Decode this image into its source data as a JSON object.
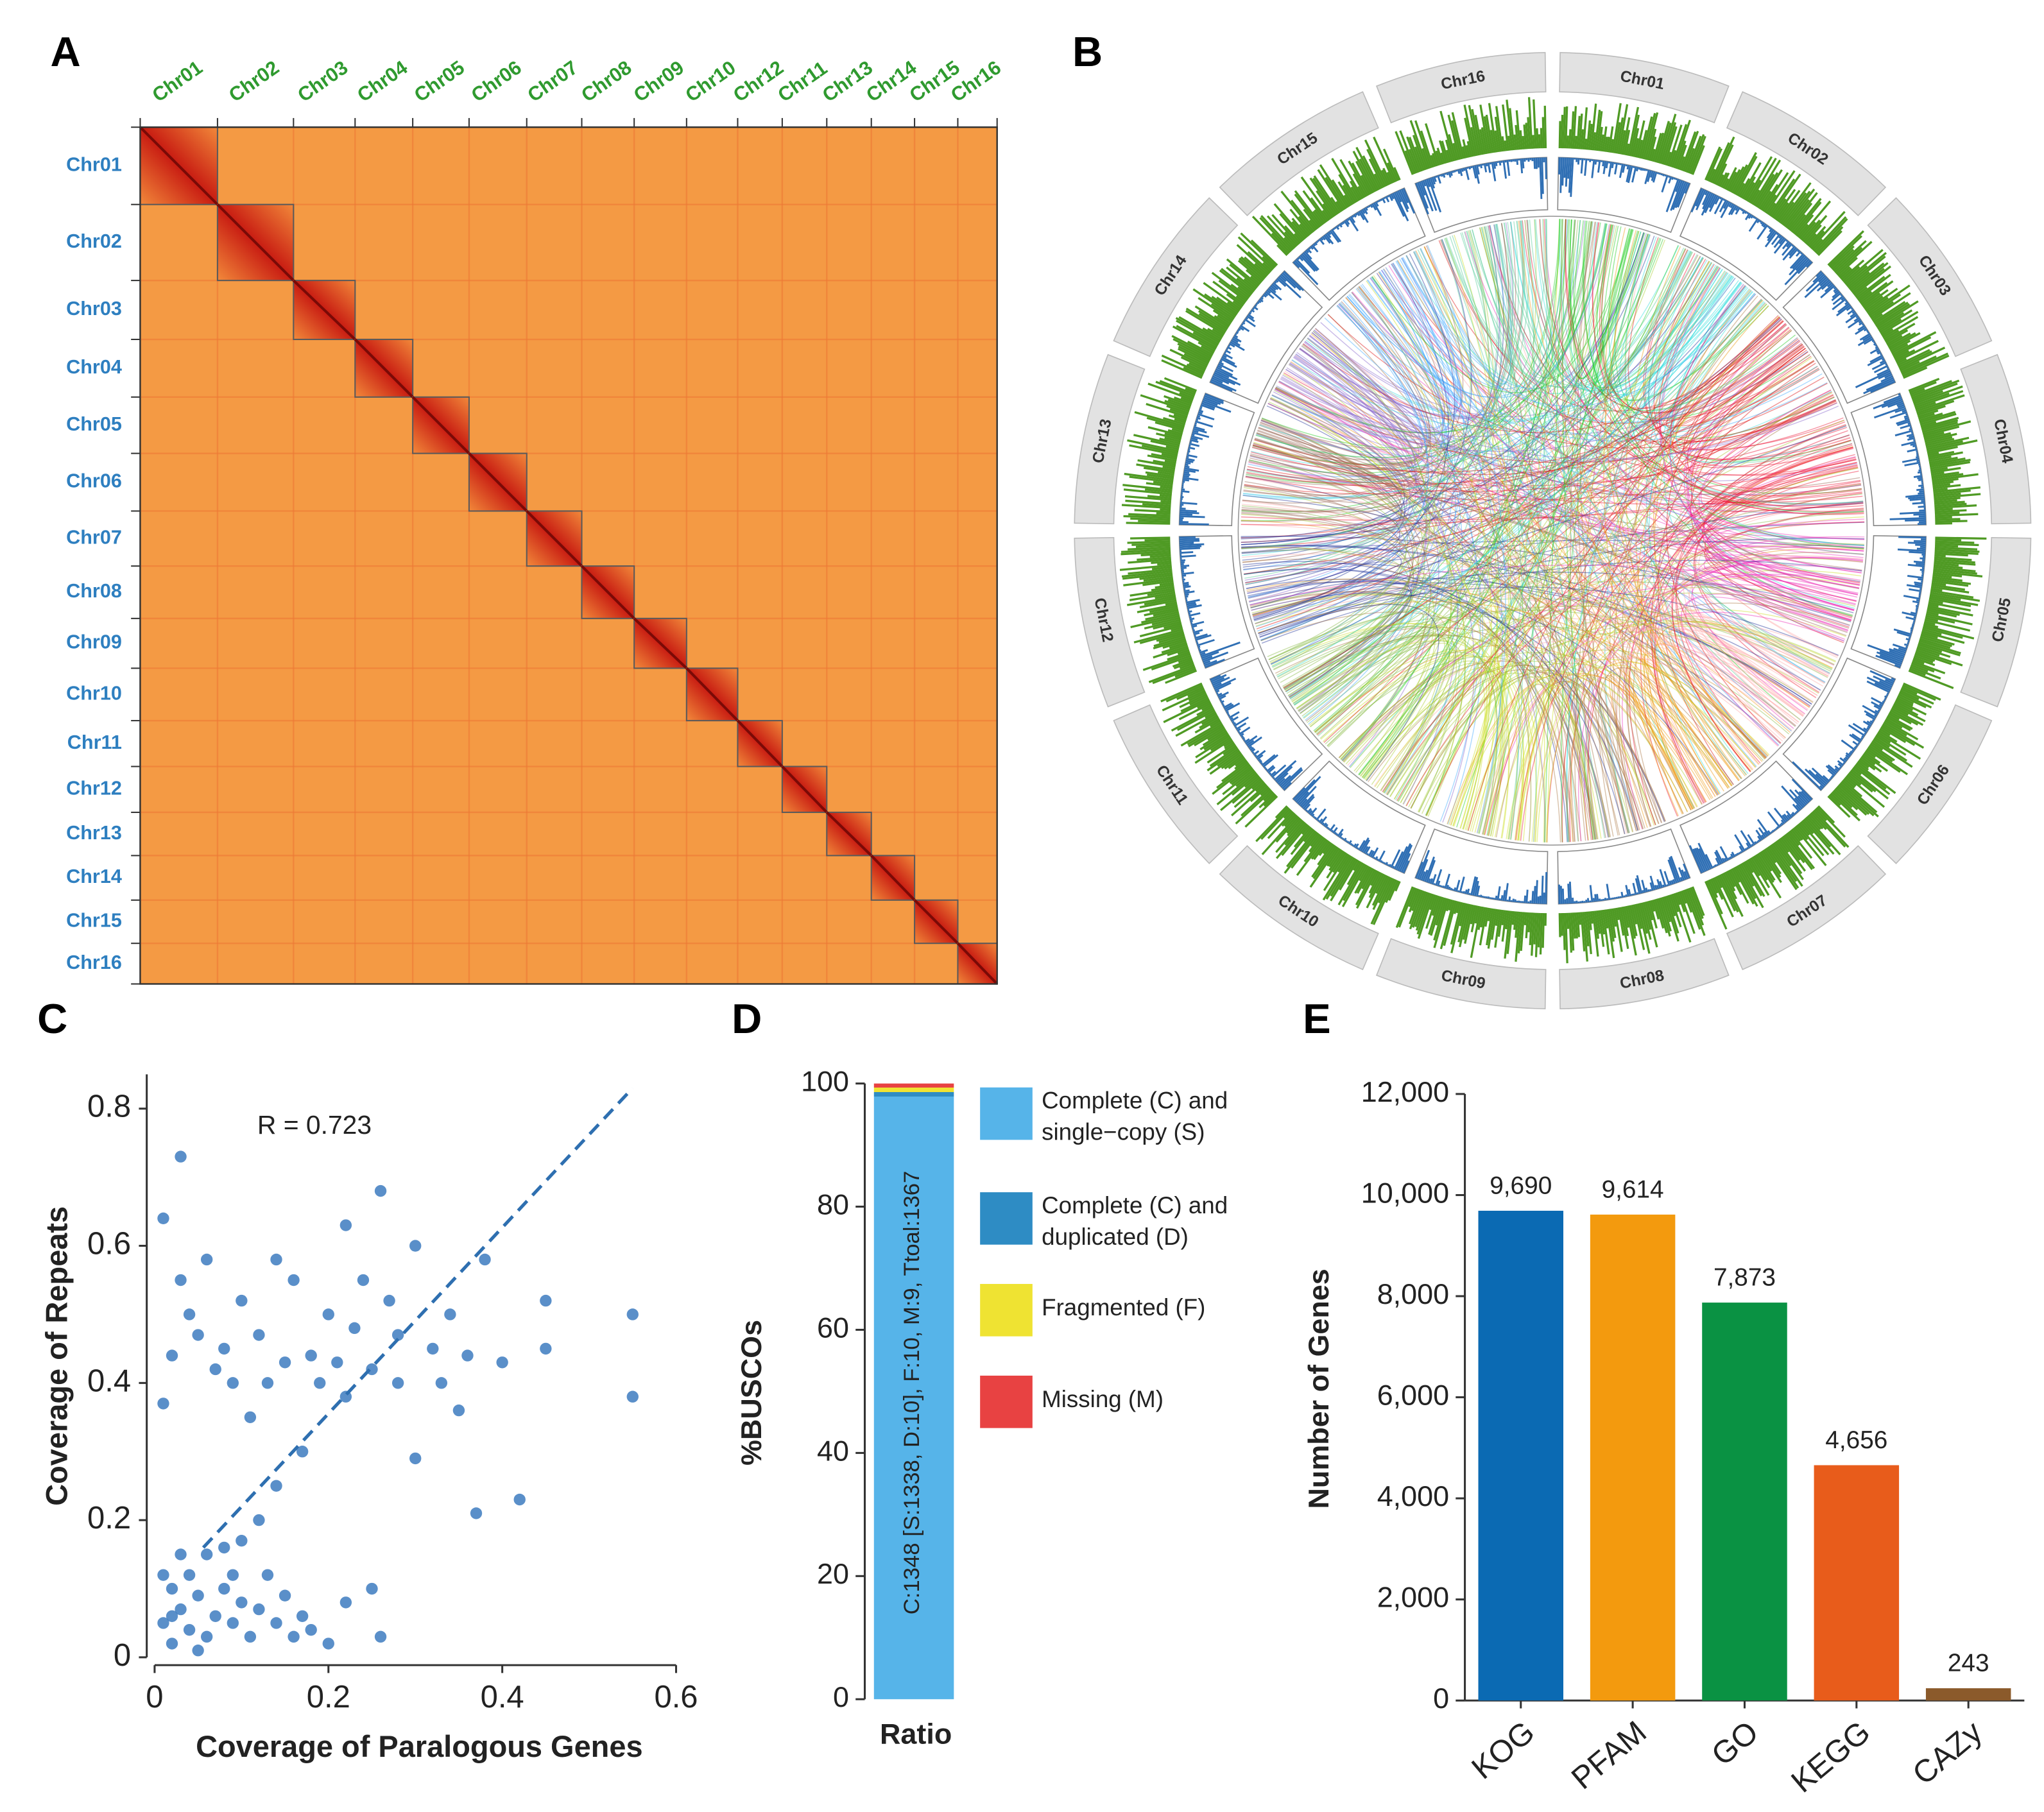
{
  "chart_data": [
    {
      "type": "heatmap",
      "panel": "A",
      "x_categories": [
        "Chr01",
        "Chr02",
        "Chr03",
        "Chr04",
        "Chr05",
        "Chr06",
        "Chr07",
        "Chr08",
        "Chr09",
        "Chr10",
        "Chr12",
        "Chr11",
        "Chr13",
        "Chr14",
        "Chr15",
        "Chr16"
      ],
      "y_categories": [
        "Chr01",
        "Chr02",
        "Chr03",
        "Chr04",
        "Chr05",
        "Chr06",
        "Chr07",
        "Chr08",
        "Chr09",
        "Chr10",
        "Chr11",
        "Chr12",
        "Chr13",
        "Chr14",
        "Chr15",
        "Chr16"
      ],
      "x_color": "#2f9a2f",
      "y_color": "#2e7fc0"
    },
    {
      "type": "circos",
      "panel": "B",
      "categories": [
        "Chr01",
        "Chr02",
        "Chr03",
        "Chr04",
        "Chr05",
        "Chr06",
        "Chr07",
        "Chr08",
        "Chr09",
        "Chr10",
        "Chr11",
        "Chr12",
        "Chr13",
        "Chr14",
        "Chr15",
        "Chr16"
      ],
      "colors": [
        "#22cc22",
        "#33dddd",
        "#dd1111",
        "#ee1133",
        "#ee33bb",
        "#ffaaaa",
        "#ee9911",
        "#aa7744",
        "#ccdd22",
        "#aacc33",
        "#88bb44",
        "#223399",
        "#996655",
        "#8866cc",
        "#44aaff",
        "#55cc99"
      ]
    },
    {
      "type": "scatter",
      "panel": "C",
      "xlabel": "Coverage of Paralogous Genes",
      "ylabel": "Coverage of Repeats",
      "annotation": "R = 0.723",
      "color": "#3d7bbf",
      "x": [
        0.01,
        0.03,
        0.03,
        0.06,
        0.04,
        0.02,
        0.01,
        0.08,
        0.1,
        0.12,
        0.14,
        0.16,
        0.18,
        0.2,
        0.22,
        0.24,
        0.26,
        0.28,
        0.3,
        0.32,
        0.34,
        0.36,
        0.38,
        0.4,
        0.45,
        0.45,
        0.55,
        0.55,
        0.42,
        0.37,
        0.3,
        0.28,
        0.25,
        0.22,
        0.19,
        0.15,
        0.13,
        0.11,
        0.09,
        0.07,
        0.05,
        0.17,
        0.14,
        0.12,
        0.1,
        0.08,
        0.06,
        0.04,
        0.02,
        0.01,
        0.02,
        0.03,
        0.04,
        0.05,
        0.06,
        0.07,
        0.08,
        0.09,
        0.1,
        0.11,
        0.12,
        0.13,
        0.14,
        0.15,
        0.16,
        0.17,
        0.18,
        0.2,
        0.22,
        0.25,
        0.26,
        0.01,
        0.03,
        0.05,
        0.02,
        0.09,
        0.23,
        0.27,
        0.21,
        0.33,
        0.35
      ],
      "y": [
        0.64,
        0.73,
        0.55,
        0.58,
        0.5,
        0.44,
        0.37,
        0.45,
        0.52,
        0.47,
        0.58,
        0.55,
        0.44,
        0.5,
        0.63,
        0.55,
        0.68,
        0.47,
        0.6,
        0.45,
        0.5,
        0.44,
        0.58,
        0.43,
        0.52,
        0.45,
        0.5,
        0.38,
        0.23,
        0.21,
        0.29,
        0.4,
        0.42,
        0.38,
        0.4,
        0.43,
        0.4,
        0.35,
        0.4,
        0.42,
        0.47,
        0.3,
        0.25,
        0.2,
        0.17,
        0.16,
        0.15,
        0.12,
        0.1,
        0.05,
        0.02,
        0.07,
        0.04,
        0.09,
        0.03,
        0.06,
        0.1,
        0.05,
        0.08,
        0.03,
        0.07,
        0.12,
        0.05,
        0.09,
        0.03,
        0.06,
        0.04,
        0.02,
        0.08,
        0.1,
        0.03,
        0.12,
        0.15,
        0.01,
        0.06,
        0.12,
        0.48,
        0.52,
        0.43,
        0.4,
        0.36
      ],
      "trendline": {
        "x": [
          0.056,
          0.55
        ],
        "y": [
          0.16,
          0.83
        ],
        "color": "#2e6fb0"
      },
      "xlim": [
        0,
        0.6
      ],
      "ylim": [
        0,
        0.85
      ],
      "xticks": [
        0,
        0.2,
        0.4,
        0.6
      ],
      "yticks": [
        0,
        0.2,
        0.4,
        0.6,
        0.8
      ]
    },
    {
      "type": "stacked_bar",
      "panel": "D",
      "ylabel": "%BUSCOs",
      "categories": [
        "Ratio"
      ],
      "bar_label": "C:1348 [S:1338, D:10], F:10, M:9, Ttoal:1367",
      "series": [
        {
          "name": "Complete (C) and single−copy (S)",
          "color": "#56b4e9",
          "values": [
            97.88
          ]
        },
        {
          "name": "Complete (C) and duplicated (D)",
          "color": "#2e8cc4",
          "values": [
            0.73
          ]
        },
        {
          "name": "Fragmented (F)",
          "color": "#efe332",
          "values": [
            0.73
          ]
        },
        {
          "name": "Missing (M)",
          "color": "#e84242",
          "values": [
            0.66
          ]
        }
      ],
      "ylim": [
        0,
        100
      ],
      "yticks": [
        0,
        20,
        40,
        60,
        80,
        100
      ]
    },
    {
      "type": "bar",
      "panel": "E",
      "ylabel": "Number of Genes",
      "categories": [
        "KOG",
        "PFAM",
        "GO",
        "KEGG",
        "CAZy"
      ],
      "values": [
        9690,
        9614,
        7873,
        4656,
        243
      ],
      "value_labels": [
        "9,690",
        "9,614",
        "7,873",
        "4,656",
        "243"
      ],
      "colors": [
        "#0b6ab3",
        "#f39a0e",
        "#0a9243",
        "#e85c1b",
        "#8b5a2b"
      ],
      "ylim": [
        0,
        12000
      ],
      "yticks": [
        0,
        {
          "value": 2000,
          "label": "2,000"
        },
        {
          "value": 4000,
          "label": "4,000"
        },
        {
          "value": 6000,
          "label": "6,000"
        },
        {
          "value": 8000,
          "label": "8,000"
        },
        {
          "value": 10000,
          "label": "10,000"
        },
        {
          "value": 12000,
          "label": "12,000"
        }
      ]
    }
  ]
}
